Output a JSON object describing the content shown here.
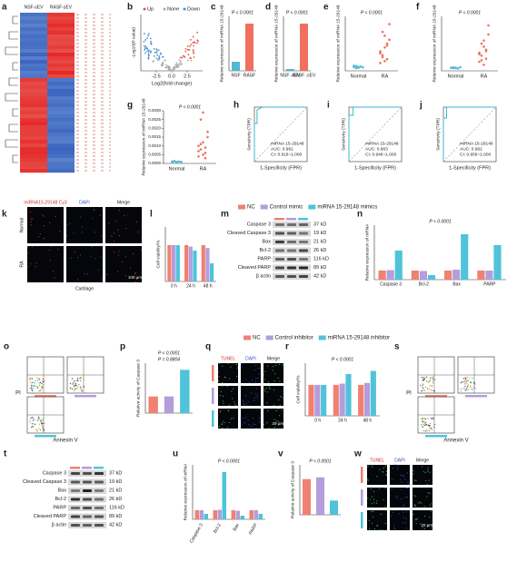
{
  "chart_data": [
    {
      "type": "heatmap",
      "label": "a",
      "columns": [
        "NSF-sEV",
        "RASF-sEV"
      ]
    },
    {
      "type": "volcano",
      "label": "b",
      "legend": [
        "Up",
        "None",
        "Down"
      ],
      "xlabel": "Log2(fold change)",
      "ylabel": "-Log10(P value)",
      "xlim": [
        -5,
        5
      ],
      "xticks": [
        -2.5,
        {
          "value": 0,
          "label": "0.0"
        },
        2.5
      ]
    },
    {
      "type": "bar",
      "label": "c",
      "annotations": [
        "P < 0.0001"
      ],
      "ylabel": "Relative expression of miRNA 15-29148",
      "categories": [
        "NSF",
        "RASF"
      ],
      "values": [
        1,
        5.2
      ],
      "colors": [
        "#4fb8d4",
        "#f07060"
      ],
      "ylim": [
        0,
        6
      ]
    },
    {
      "type": "bar",
      "label": "d",
      "annotations": [
        "P < 0.0001"
      ],
      "ylabel": "Relative expression of miRNA 15-29148",
      "categories": [
        "NSF -sEV",
        "RASF -sEV"
      ],
      "values": [
        1,
        26
      ],
      "colors": [
        "#4fb8d4",
        "#f07060"
      ],
      "ylim": [
        0,
        30
      ]
    },
    {
      "type": "dot",
      "label": "e",
      "annotations": [
        "P < 0.0001"
      ],
      "ylabel": "Relative expression of miRNA 15-29148",
      "categories": [
        "Normal",
        "RA"
      ],
      "points": [
        [
          1,
          1.2,
          0.8,
          1.1,
          0.9,
          1.3,
          0.7,
          1
        ],
        [
          2,
          4,
          6,
          3,
          8,
          5,
          10,
          2.5,
          7,
          12,
          4.5,
          3.5,
          9,
          6.5
        ]
      ],
      "colors": [
        "#4fb8d4",
        "#f07060"
      ],
      "ylim": [
        0,
        14
      ]
    },
    {
      "type": "dot",
      "label": "f",
      "annotations": [
        "P < 0.0001"
      ],
      "ylabel": "Relative expression of miRNA 15-29148",
      "categories": [
        "Normal",
        "RA"
      ],
      "points": [
        [
          1,
          1.1,
          0.9,
          0.8,
          1.2,
          1,
          0.95,
          1.05
        ],
        [
          3,
          5,
          8,
          4,
          12,
          6,
          9,
          2,
          7,
          15,
          5.5,
          3.5,
          10,
          6.5
        ]
      ],
      "colors": [
        "#4fb8d4",
        "#f07060"
      ],
      "ylim": [
        0,
        18
      ]
    },
    {
      "type": "dot",
      "label": "g",
      "annotations": [
        "P < 0.0001"
      ],
      "ylabel": "Relative expression of miRNA 15-29148",
      "categories": [
        "Normal",
        "RA"
      ],
      "points": [
        [
          0.0001,
          0.00012,
          8e-05,
          0.00011,
          9e-05,
          0.0001,
          0.00013,
          7e-05
        ],
        [
          0.0004,
          0.0008,
          0.0012,
          0.0006,
          0.0018,
          0.001,
          0.0025,
          0.0005,
          0.0009,
          0.0015,
          0.0007,
          0.0011,
          0.0029,
          0.0003
        ]
      ],
      "colors": [
        "#4fb8d4",
        "#f07060"
      ],
      "ylim": [
        0,
        0.003
      ],
      "yticks": [
        {
          "value": 0,
          "label": "0.0000"
        },
        {
          "value": 0.0005,
          "label": "0.0005"
        },
        {
          "value": 0.001,
          "label": "0.0010"
        },
        {
          "value": 0.0015,
          "label": "0.0015"
        },
        {
          "value": 0.002,
          "label": "0.0020"
        },
        {
          "value": 0.0025,
          "label": "0.0025"
        },
        {
          "value": 0.003,
          "label": "0.0030"
        }
      ]
    },
    {
      "type": "roc",
      "label": "h",
      "ylabel": "Sensitivity (TPR)",
      "xlabel": "1-Specificity (FPR)",
      "legend": [
        "miRNA 15-29148",
        "AUC: 0.961",
        "CI: 0.916~1.000"
      ],
      "x": [
        0,
        0,
        0.05,
        0.05,
        0.15,
        1
      ],
      "y": [
        0,
        0.7,
        0.7,
        0.95,
        1,
        1
      ],
      "xlim": [
        0,
        1
      ],
      "ylim": [
        0,
        1
      ]
    },
    {
      "type": "roc",
      "label": "i",
      "ylabel": "Sensitivity (TPR)",
      "xlabel": "1-Specificity (FPR)",
      "legend": [
        "miRNA 15-29148",
        "AUC: 0.963",
        "CI: 0.946~1.000"
      ],
      "x": [
        0,
        0,
        0.08,
        0.08,
        1
      ],
      "y": [
        0,
        0.85,
        0.85,
        1,
        1
      ],
      "xlim": [
        0,
        1
      ],
      "ylim": [
        0,
        1
      ]
    },
    {
      "type": "roc",
      "label": "j",
      "ylabel": "Sensitivity (TPR)",
      "xlabel": "1-Specificity (FPR)",
      "legend": [
        "miRNA 15-29148",
        "AUC: 0.962",
        "CI: 0.959~1.000"
      ],
      "x": [
        0,
        0,
        0.06,
        0.06,
        1
      ],
      "y": [
        0,
        0.8,
        0.8,
        1,
        1
      ],
      "xlim": [
        0,
        1
      ],
      "ylim": [
        0,
        1
      ]
    },
    {
      "type": "images",
      "label": "k",
      "columns": [
        "miRNA15-29148 Cy3",
        "DAPI",
        "Merge"
      ],
      "rows": [
        "Normal",
        "RA"
      ],
      "footer": "Cartilage",
      "scale": "100 μm"
    },
    {
      "type": "bar",
      "label": "l",
      "ylabel": "Cell viability/%",
      "categories": [
        "0 h",
        "24 h",
        "48 h"
      ],
      "series": [
        {
          "name": "NC",
          "color": "#f08070",
          "values": [
            100,
            100,
            100
          ]
        },
        {
          "name": "Control mimic",
          "color": "#b39ddb",
          "values": [
            100,
            96,
            92
          ]
        },
        {
          "name": "miRNA 15-29148 mimics",
          "color": "#4fc3d9",
          "values": [
            100,
            85,
            50
          ]
        }
      ],
      "ylim": [
        0,
        150
      ]
    },
    {
      "type": "blot",
      "label": "m",
      "bands": [
        "Caspase 3",
        "Cleaved Caspase 3",
        "Bax",
        "Bcl-2",
        "PARP",
        "Cleaved PARP",
        "β actin"
      ],
      "sizes": [
        "37 kD",
        "19 kD",
        "21 kD",
        "26 kD",
        "116 kD",
        "89 kD",
        "42 kD"
      ]
    },
    {
      "type": "bar",
      "label": "n",
      "ylabel": "Relative expression of mRNA",
      "annotations": [
        "P < 0.0001"
      ],
      "categories": [
        "Caspase 3",
        "Bcl-2",
        "Bax",
        "PARP"
      ],
      "series": [
        {
          "color": "#f08070",
          "values": [
            1,
            1,
            1,
            1
          ]
        },
        {
          "color": "#b39ddb",
          "values": [
            1.05,
            0.95,
            1.1,
            1
          ]
        },
        {
          "color": "#4fc3d9",
          "values": [
            3.2,
            0.5,
            5,
            3.8
          ]
        }
      ],
      "ylim": [
        0,
        6
      ]
    },
    {
      "type": "flow",
      "label": "o",
      "ylabel": "PI",
      "xlabel": "Annexin V"
    },
    {
      "type": "bar",
      "label": "p",
      "ylabel": "Relative activity of Caspase 3",
      "annotations": [
        "P = 0.8804",
        "P < 0.0001"
      ],
      "categories": [
        "NC",
        "Control inhibitor",
        "Inhibitor"
      ],
      "hide_categories": true,
      "values": [
        1,
        1,
        2.6
      ],
      "colors": [
        "#f08070",
        "#b39ddb",
        "#4fc3d9"
      ],
      "ylim": [
        0,
        3
      ]
    },
    {
      "type": "images",
      "label": "q",
      "columns": [
        "TUNEL",
        "DAPI",
        "Merge"
      ],
      "rows": [
        null,
        null,
        null
      ],
      "scale": "20 μm"
    },
    {
      "type": "bar",
      "label": "r",
      "ylabel": "Cell viability/%",
      "annotations": [
        "P < 0.0001"
      ],
      "categories": [
        "0 h",
        "24 h",
        "48 h"
      ],
      "series": [
        {
          "name": "NC",
          "color": "#f08070",
          "values": [
            100,
            100,
            100
          ]
        },
        {
          "name": "Control inhibitor",
          "color": "#b39ddb",
          "values": [
            100,
            104,
            106
          ]
        },
        {
          "name": "miRNA 15-29148 inhibitor",
          "color": "#4fc3d9",
          "values": [
            100,
            135,
            145
          ]
        }
      ],
      "ylim": [
        0,
        170
      ]
    },
    {
      "type": "flow",
      "label": "s",
      "ylabel": "PI",
      "xlabel": "Annexin V"
    },
    {
      "type": "blot",
      "label": "t",
      "bands": [
        "Caspase 3",
        "Cleaved Caspase 3",
        "Bax",
        "Bcl-2",
        "PARP",
        "Cleaved PARP",
        "β actin"
      ],
      "sizes": [
        "37 kD",
        "19 kD",
        "21 kD",
        "26 kD",
        "116 kD",
        "89 kD",
        "42 kD"
      ]
    },
    {
      "type": "bar",
      "label": "u",
      "ylabel": "Relative expression of mRNA",
      "annotations": [
        "P < 0.0001"
      ],
      "categories": [
        "Caspase 3",
        "Bcl-2",
        "Bax",
        "PARP"
      ],
      "series": [
        {
          "color": "#f08070",
          "values": [
            1,
            1,
            1,
            1
          ]
        },
        {
          "color": "#b39ddb",
          "values": [
            1,
            1.05,
            0.95,
            1
          ]
        },
        {
          "color": "#4fc3d9",
          "values": [
            0.6,
            5.2,
            0.4,
            0.6
          ]
        }
      ],
      "ylim": [
        0,
        6
      ]
    },
    {
      "type": "bar",
      "label": "v",
      "ylabel": "Relative activity of Caspase 3",
      "annotations": [
        "P < 0.0001"
      ],
      "categories": [
        "NC",
        "Control inhibitor",
        "Inhibitor"
      ],
      "hide_categories": true,
      "values": [
        1,
        1.05,
        0.4
      ],
      "colors": [
        "#f08070",
        "#b39ddb",
        "#4fc3d9"
      ],
      "ylim": [
        0,
        1.4
      ]
    },
    {
      "type": "images",
      "label": "w",
      "columns": [
        "TUNEL",
        "DAPI",
        "Merge"
      ],
      "rows": [
        null,
        null,
        null
      ],
      "scale": "20 μm"
    }
  ]
}
